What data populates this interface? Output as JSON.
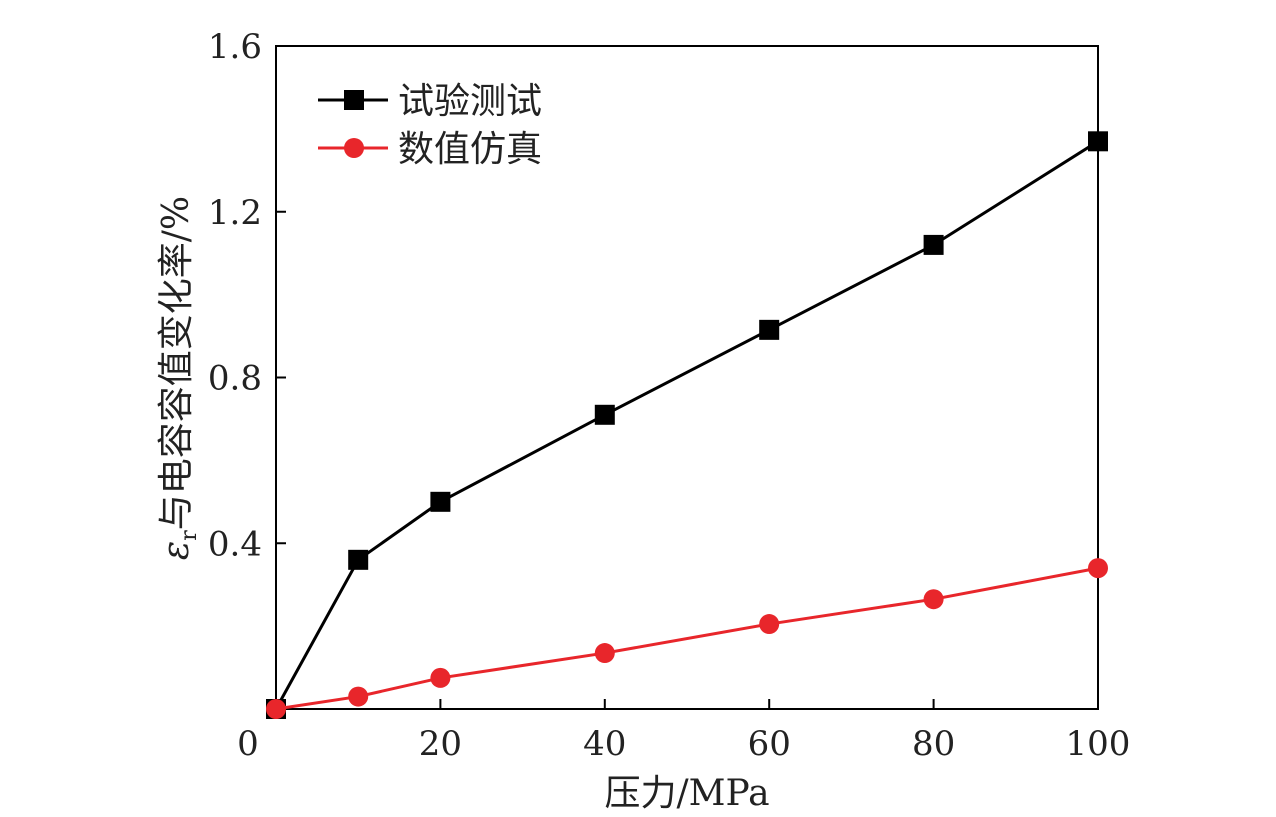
{
  "chart_data": {
    "type": "line",
    "xlabel": "压力/MPa",
    "ylabel_symbol": "ε",
    "ylabel_subscript": "r",
    "ylabel_rest": "与电容容值变化率/%",
    "xlim": [
      0,
      100
    ],
    "ylim": [
      0,
      1.6
    ],
    "xticks": [
      0,
      20,
      40,
      60,
      80,
      100
    ],
    "yticks": [
      0.4,
      0.8,
      1.2,
      1.6
    ],
    "xtick_labels": [
      "0",
      "20",
      "40",
      "60",
      "80",
      "100"
    ],
    "ytick_labels": [
      "0.4",
      "0.8",
      "1.2",
      "1.6"
    ],
    "grid": false,
    "legend_position": "top-left",
    "series": [
      {
        "name": "试验测试",
        "color": "#000000",
        "marker": "square",
        "x": [
          0,
          10,
          20,
          40,
          60,
          80,
          100
        ],
        "y": [
          0.0,
          0.36,
          0.5,
          0.71,
          0.915,
          1.12,
          1.37
        ]
      },
      {
        "name": "数值仿真",
        "color": "#e8262b",
        "marker": "circle",
        "x": [
          0,
          10,
          20,
          40,
          60,
          80,
          100
        ],
        "y": [
          0.0,
          0.03,
          0.075,
          0.135,
          0.205,
          0.265,
          0.34
        ]
      }
    ]
  }
}
